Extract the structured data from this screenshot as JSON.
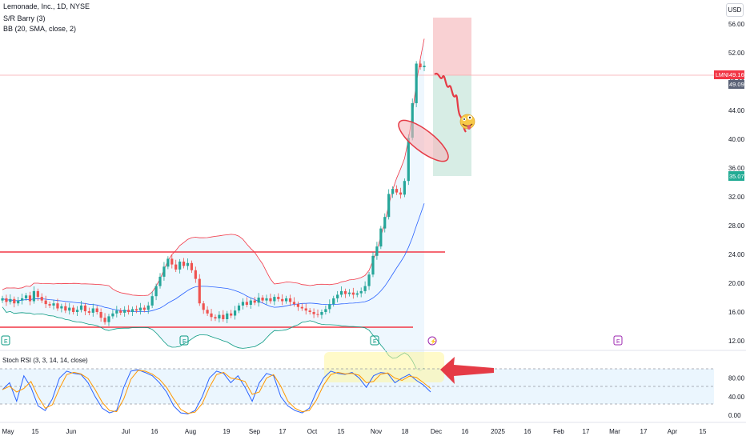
{
  "header": {
    "symbol_line": "Lemonade, Inc., 1D, NYSE",
    "indicator_1": "S/R Barry (3)",
    "indicator_2": "BB (20, SMA, close, 2)",
    "currency_button": "USD"
  },
  "price_tags": {
    "symbol_tag": "LMND",
    "last_price": "49.16",
    "second_price": "49.09",
    "target_price": "35.07"
  },
  "rsi_panel": {
    "legend": "Stoch RSI (3, 3, 14, 14, close)",
    "y_ticks": [
      "80.00",
      "40.00",
      "0.00"
    ]
  },
  "colors": {
    "up": "#26a69a",
    "down": "#ef5350",
    "bb_upper": "#f23645",
    "bb_lower": "#089981",
    "bb_basis": "#2962ff",
    "rsi_k": "#2962ff",
    "rsi_d": "#ff9800",
    "support_resistance": "#f23645",
    "stop_zone": "#f7c5c8",
    "target_zone": "#cde9df"
  },
  "chart_data": {
    "type": "candlestick",
    "price_axis_ticks": [
      "56.00",
      "52.00",
      "48.00",
      "44.00",
      "40.00",
      "36.00",
      "32.00",
      "28.00",
      "24.00",
      "20.00",
      "16.00",
      "12.00"
    ],
    "time_axis_ticks": [
      "May",
      "15",
      "Jun",
      "Jul",
      "16",
      "Aug",
      "19",
      "Sep",
      "17",
      "Oct",
      "15",
      "Nov",
      "18",
      "Dec",
      "16",
      "2025",
      "16",
      "Feb",
      "17",
      "Mar",
      "17",
      "Apr",
      "15"
    ],
    "horizontal_levels": [
      24.5,
      14.0
    ],
    "earnings_markers": [
      "E",
      "E",
      "E",
      "E"
    ],
    "closes": [
      17.9,
      17.4,
      17.8,
      17.2,
      17.6,
      17.9,
      18.3,
      17.5,
      18.9,
      18.1,
      17.6,
      17.1,
      16.9,
      17.2,
      16.5,
      16.8,
      16.2,
      16.6,
      16.0,
      16.3,
      16.9,
      16.1,
      15.9,
      16.5,
      16.0,
      15.2,
      14.6,
      15.4,
      15.8,
      16.2,
      15.9,
      16.3,
      16.0,
      16.4,
      16.2,
      16.6,
      16.3,
      16.9,
      18.2,
      19.6,
      20.9,
      22.3,
      23.4,
      22.6,
      21.9,
      23.0,
      22.4,
      22.8,
      21.8,
      20.6,
      17.2,
      16.3,
      15.8,
      15.3,
      15.1,
      15.6,
      15.0,
      15.8,
      15.5,
      16.2,
      16.9,
      17.4,
      17.0,
      17.6,
      17.3,
      18.0,
      17.6,
      17.9,
      17.5,
      18.1,
      17.8,
      17.5,
      17.9,
      17.4,
      17.1,
      16.7,
      16.5,
      16.2,
      16.0,
      15.7,
      15.6,
      16.0,
      16.4,
      17.1,
      17.9,
      18.4,
      18.9,
      18.5,
      18.7,
      18.4,
      18.6,
      18.9,
      19.6,
      21.2,
      23.8,
      25.1,
      27.6,
      29.2,
      32.4,
      33.1,
      32.6,
      32.3,
      34.2,
      40.2,
      45.0,
      50.5,
      50.0,
      50.2
    ],
    "plotted_projection_end": 41.5,
    "stoch_rsi_k_levels": "oscillating 0-100 with overbought highlight near 80 in Nov"
  }
}
